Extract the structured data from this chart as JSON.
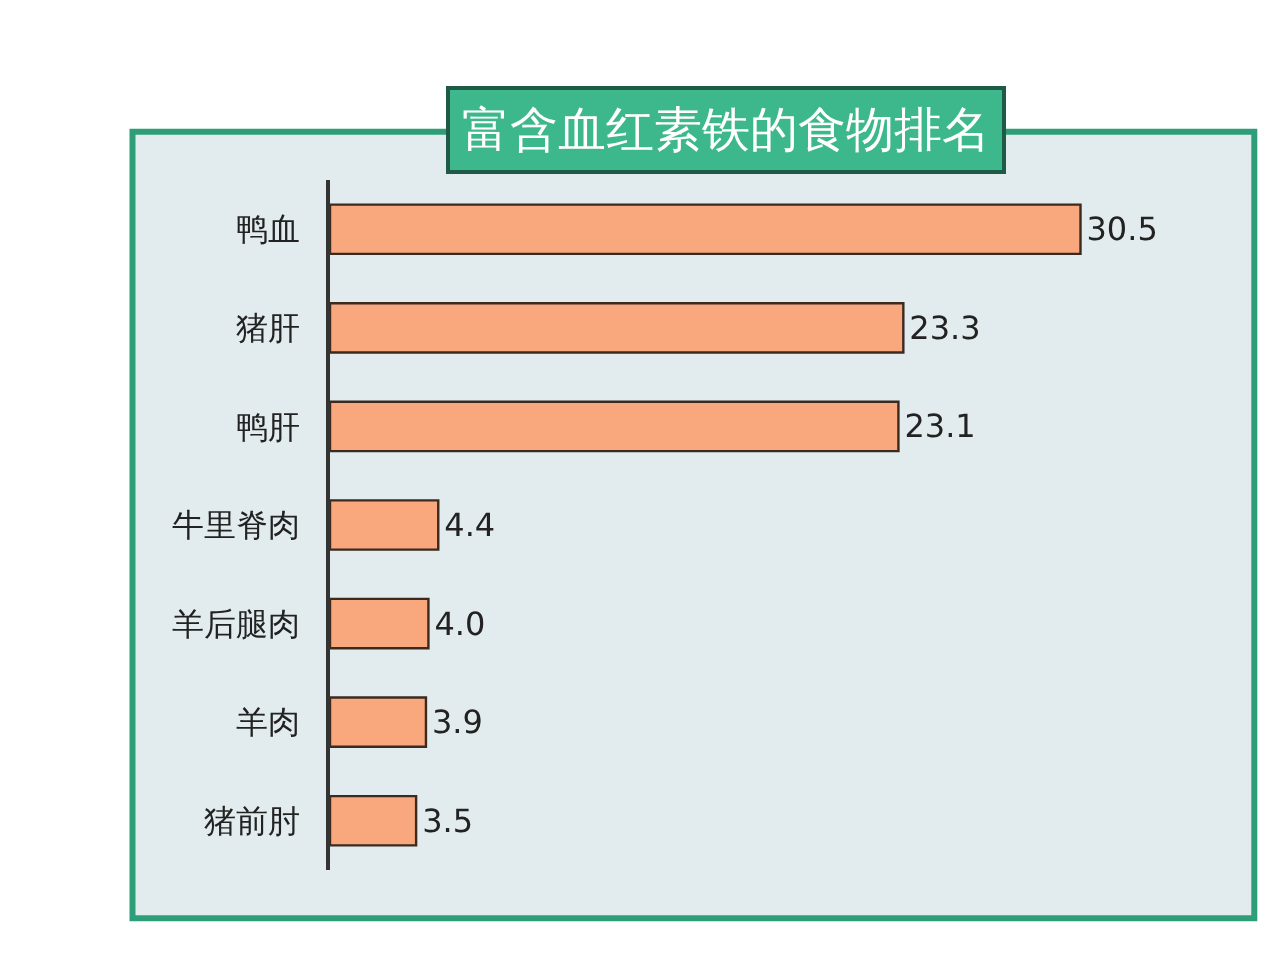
{
  "chart_data": {
    "type": "bar",
    "orientation": "horizontal",
    "title": "富含血红素铁的食物排名",
    "categories": [
      "鸭血",
      "猪肝",
      "鸭肝",
      "牛里脊肉",
      "羊后腿肉",
      "羊肉",
      "猪前肘"
    ],
    "values": [
      30.5,
      23.3,
      23.1,
      4.4,
      4.0,
      3.9,
      3.5
    ],
    "value_labels": [
      "30.5",
      "23.3",
      "23.1",
      "4.4",
      "4.0",
      "3.9",
      "3.5"
    ],
    "color": "#f9a77c",
    "legend": false
  }
}
